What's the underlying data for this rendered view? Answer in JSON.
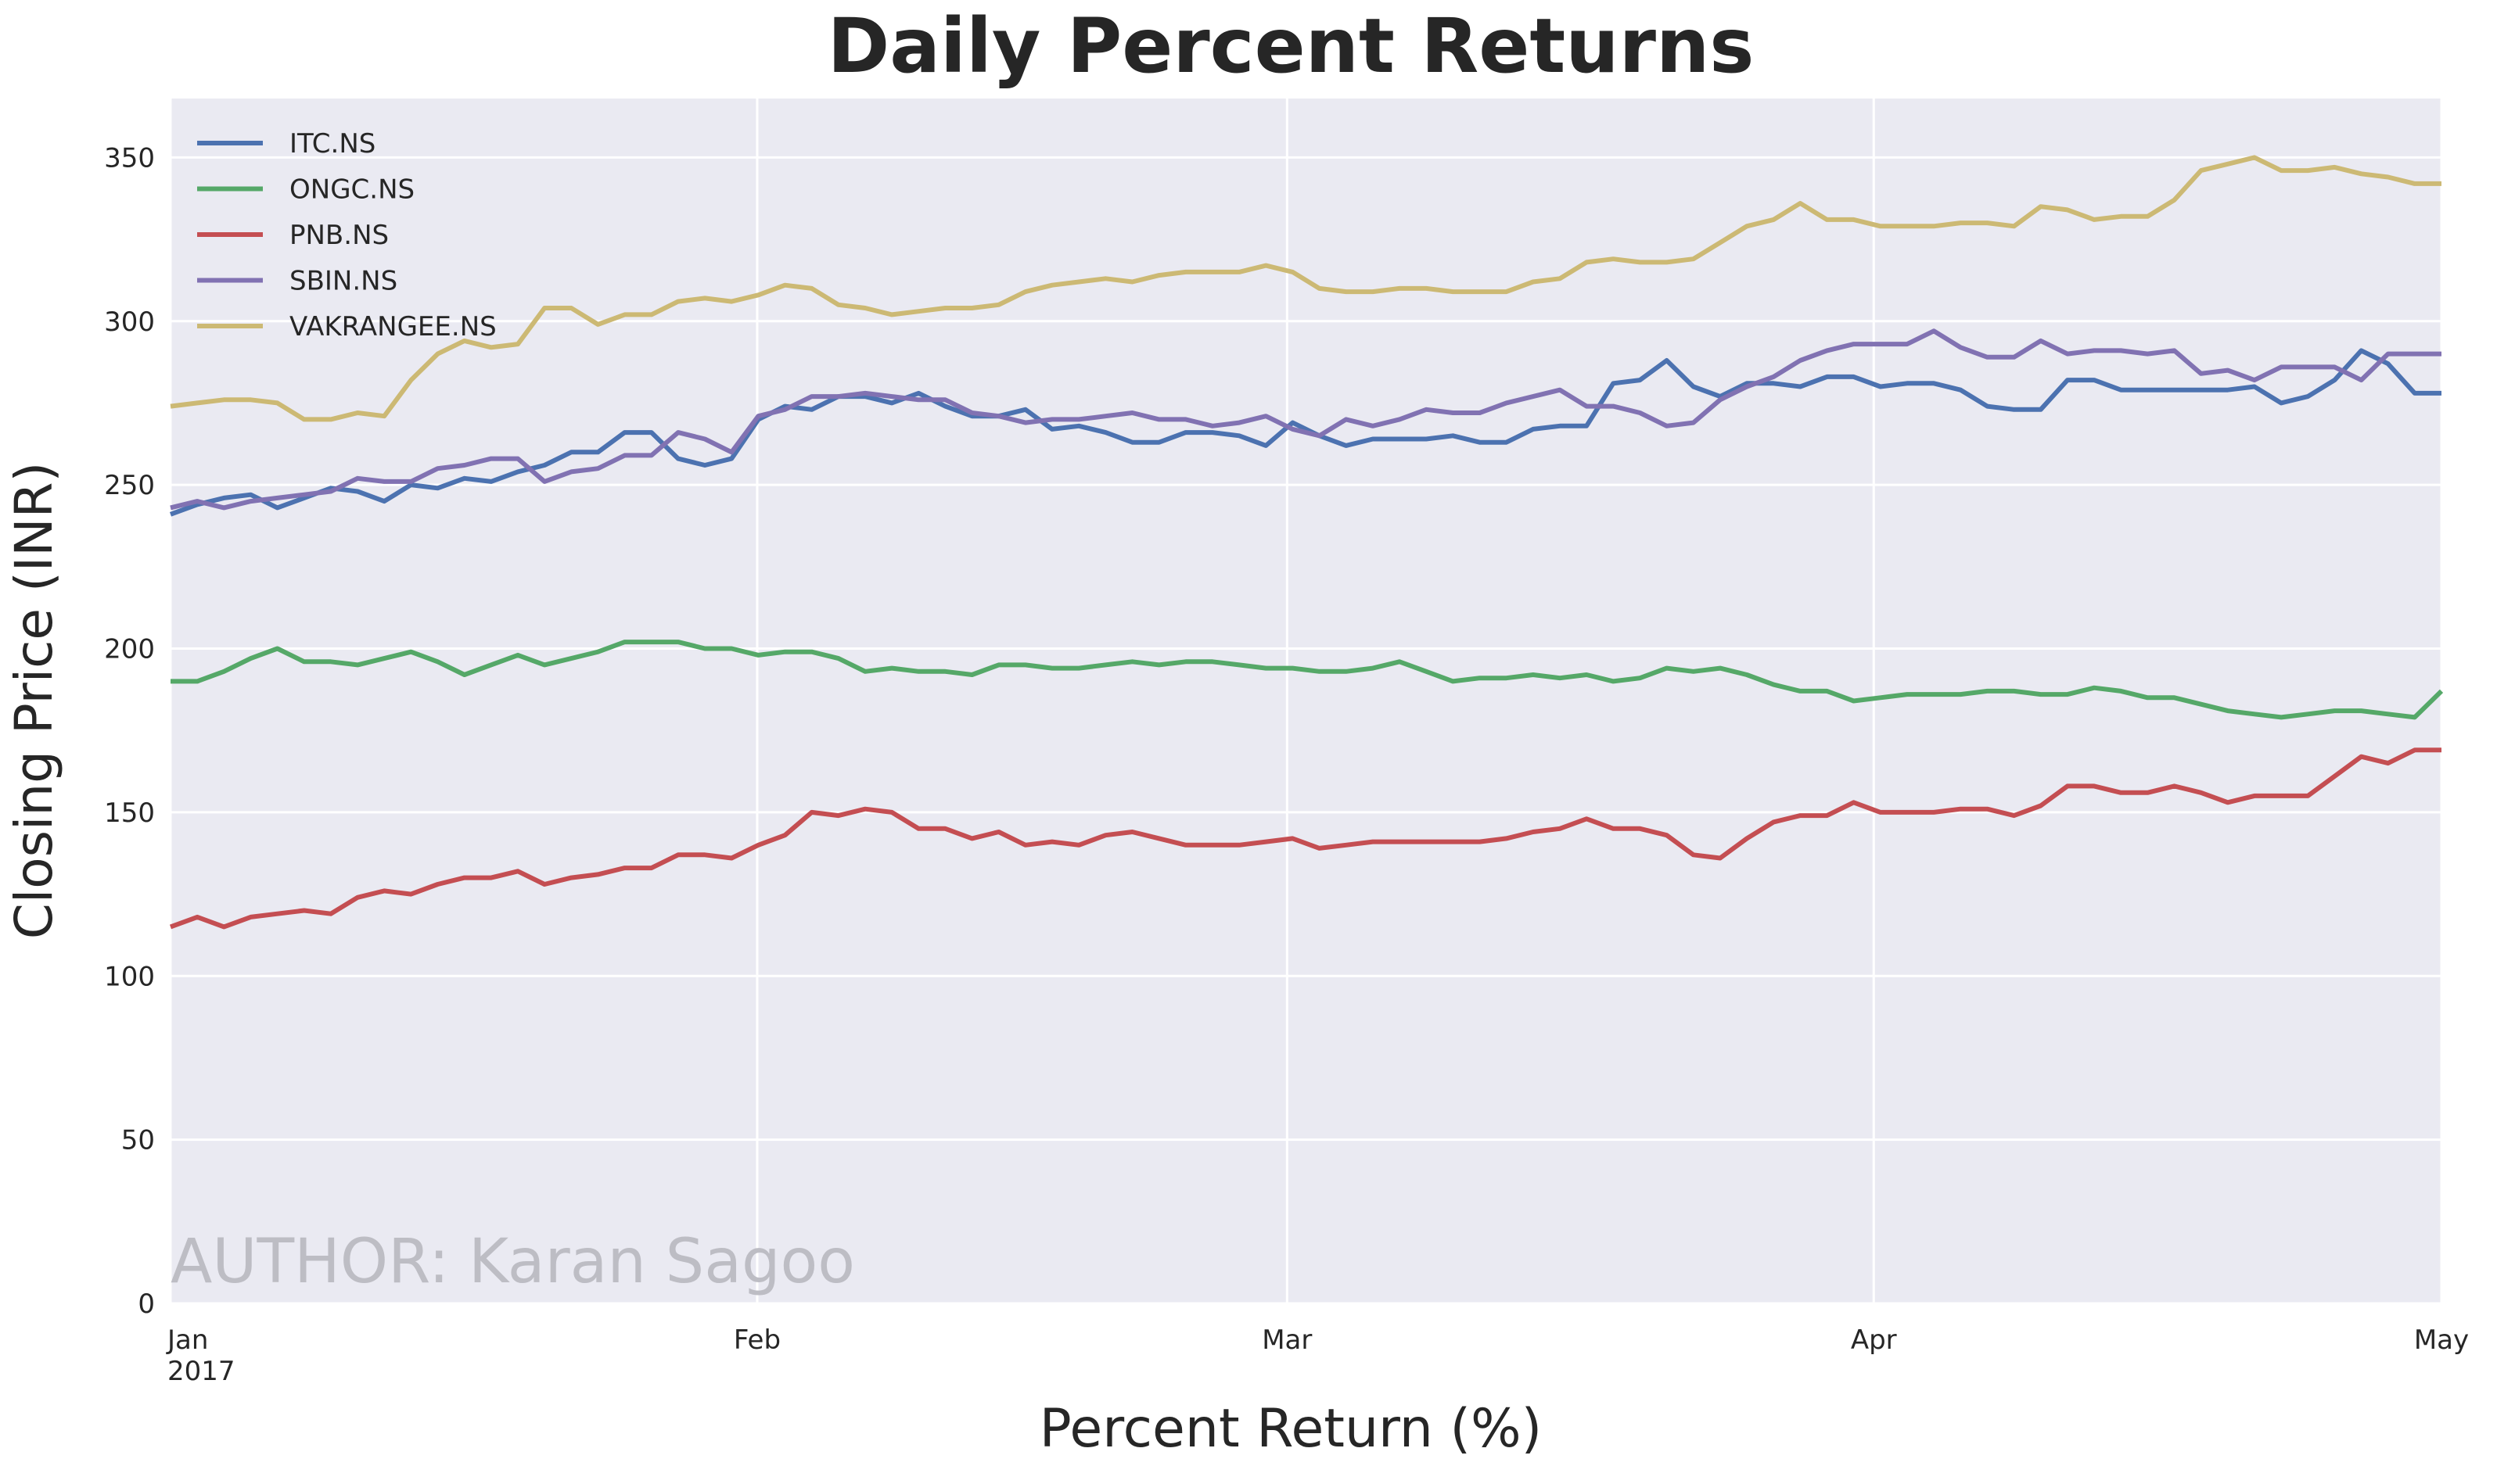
{
  "chart_data": {
    "type": "line",
    "title": "Daily Percent Returns",
    "xlabel": "Percent Return (%)",
    "ylabel": "Closing Price (INR)",
    "annotation": "AUTHOR: Karan Sagoo",
    "xlim": [
      "2017-01",
      "2017-05"
    ],
    "xticks": [
      {
        "value": "2017-01",
        "label": "Jan 2017"
      },
      {
        "value": "2017-02",
        "label": "Feb"
      },
      {
        "value": "2017-03",
        "label": "Mar"
      },
      {
        "value": "2017-04",
        "label": "Apr"
      },
      {
        "value": "2017-05",
        "label": "May"
      }
    ],
    "ylim": [
      0,
      368
    ],
    "yticks": [
      0,
      50,
      100,
      150,
      200,
      250,
      300,
      350
    ],
    "grid": true,
    "legend": "upper left",
    "series": [
      {
        "name": "ITC.NS",
        "color": "#4c72b0",
        "values": [
          241,
          244,
          246,
          247,
          243,
          246,
          249,
          248,
          245,
          250,
          249,
          252,
          251,
          254,
          256,
          260,
          260,
          266,
          266,
          258,
          256,
          258,
          270,
          274,
          273,
          277,
          277,
          275,
          278,
          274,
          271,
          271,
          273,
          267,
          268,
          266,
          263,
          263,
          266,
          266,
          265,
          262,
          269,
          265,
          262,
          264,
          264,
          264,
          265,
          263,
          263,
          267,
          268,
          268,
          281,
          282,
          288,
          280,
          277,
          281,
          281,
          280,
          283,
          283,
          280,
          281,
          281,
          279,
          274,
          273,
          273,
          282,
          282,
          279,
          279,
          279,
          279,
          279,
          280,
          275,
          277,
          282,
          291,
          287,
          278,
          278
        ]
      },
      {
        "name": "ONGC.NS",
        "color": "#55a868",
        "values": [
          190,
          190,
          193,
          197,
          200,
          196,
          196,
          195,
          197,
          199,
          196,
          192,
          195,
          198,
          195,
          197,
          199,
          202,
          202,
          202,
          200,
          200,
          198,
          199,
          199,
          197,
          193,
          194,
          193,
          193,
          192,
          195,
          195,
          194,
          194,
          195,
          196,
          195,
          196,
          196,
          195,
          194,
          194,
          193,
          193,
          194,
          196,
          193,
          190,
          191,
          191,
          192,
          191,
          192,
          190,
          191,
          194,
          193,
          194,
          192,
          189,
          187,
          187,
          184,
          185,
          186,
          186,
          186,
          187,
          187,
          186,
          186,
          188,
          187,
          185,
          185,
          183,
          181,
          180,
          179,
          180,
          181,
          181,
          180,
          179,
          187
        ]
      },
      {
        "name": "PNB.NS",
        "color": "#c44e52",
        "values": [
          115,
          118,
          115,
          118,
          119,
          120,
          119,
          124,
          126,
          125,
          128,
          130,
          130,
          132,
          128,
          130,
          131,
          133,
          133,
          137,
          137,
          136,
          140,
          143,
          150,
          149,
          151,
          150,
          145,
          145,
          142,
          144,
          140,
          141,
          140,
          143,
          144,
          142,
          140,
          140,
          140,
          141,
          142,
          139,
          140,
          141,
          141,
          141,
          141,
          141,
          142,
          144,
          145,
          148,
          145,
          145,
          143,
          137,
          136,
          142,
          147,
          149,
          149,
          153,
          150,
          150,
          150,
          151,
          151,
          149,
          152,
          158,
          158,
          156,
          156,
          158,
          156,
          153,
          155,
          155,
          155,
          161,
          167,
          165,
          169,
          169
        ]
      },
      {
        "name": "SBIN.NS",
        "color": "#8172b2",
        "values": [
          243,
          245,
          243,
          245,
          246,
          247,
          248,
          252,
          251,
          251,
          255,
          256,
          258,
          258,
          251,
          254,
          255,
          259,
          259,
          266,
          264,
          260,
          271,
          273,
          277,
          277,
          278,
          277,
          276,
          276,
          272,
          271,
          269,
          270,
          270,
          271,
          272,
          270,
          270,
          268,
          269,
          271,
          267,
          265,
          270,
          268,
          270,
          273,
          272,
          272,
          275,
          277,
          279,
          274,
          274,
          272,
          268,
          269,
          276,
          280,
          283,
          288,
          291,
          293,
          293,
          293,
          297,
          292,
          289,
          289,
          294,
          290,
          291,
          291,
          290,
          291,
          284,
          285,
          282,
          286,
          286,
          286,
          282,
          290,
          290,
          290
        ]
      },
      {
        "name": "VAKRANGEE.NS",
        "color": "#ccb974",
        "values": [
          274,
          275,
          276,
          276,
          275,
          270,
          270,
          272,
          271,
          282,
          290,
          294,
          292,
          293,
          304,
          304,
          299,
          302,
          302,
          306,
          307,
          306,
          308,
          311,
          310,
          305,
          304,
          302,
          303,
          304,
          304,
          305,
          309,
          311,
          312,
          313,
          312,
          314,
          315,
          315,
          315,
          317,
          315,
          310,
          309,
          309,
          310,
          310,
          309,
          309,
          309,
          312,
          313,
          318,
          319,
          318,
          318,
          319,
          324,
          329,
          331,
          336,
          331,
          331,
          329,
          329,
          329,
          330,
          330,
          329,
          335,
          334,
          331,
          332,
          332,
          337,
          346,
          348,
          350,
          346,
          346,
          347,
          345,
          344,
          342,
          342
        ]
      }
    ]
  }
}
